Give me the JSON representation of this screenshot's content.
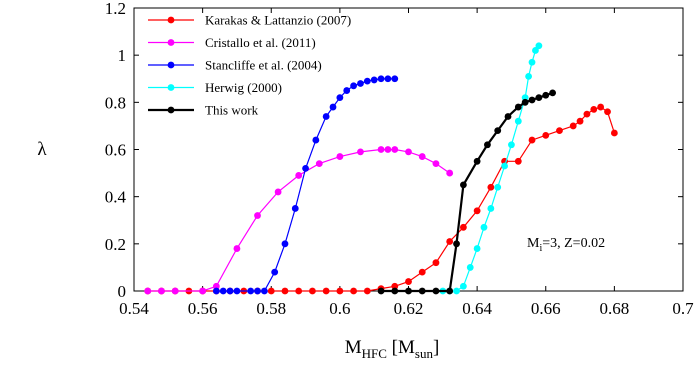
{
  "chart_data": {
    "type": "line",
    "title": "",
    "xlabel": {
      "main": "M",
      "sub": "HFC",
      "rest": " [M",
      "unit_sub": "sun",
      "close": "]"
    },
    "ylabel": "λ",
    "xlim": [
      0.54,
      0.7
    ],
    "ylim": [
      0,
      1.2
    ],
    "x_ticks": [
      {
        "value": 0.54,
        "label": "0.54"
      },
      {
        "value": 0.56,
        "label": "0.56"
      },
      {
        "value": 0.58,
        "label": "0.58"
      },
      {
        "value": 0.6,
        "label": "0.6"
      },
      {
        "value": 0.62,
        "label": "0.62"
      },
      {
        "value": 0.64,
        "label": "0.64"
      },
      {
        "value": 0.66,
        "label": "0.66"
      },
      {
        "value": 0.68,
        "label": "0.68"
      },
      {
        "value": 0.7,
        "label": "0.7"
      }
    ],
    "y_ticks": [
      {
        "value": 0,
        "label": "0"
      },
      {
        "value": 0.2,
        "label": "0.2"
      },
      {
        "value": 0.4,
        "label": "0.4"
      },
      {
        "value": 0.6,
        "label": "0.6"
      },
      {
        "value": 0.8,
        "label": "0.8"
      },
      {
        "value": 1,
        "label": "1"
      },
      {
        "value": 1.2,
        "label": "1.2"
      }
    ],
    "grid": false,
    "legend_position": "top-left",
    "annotation": {
      "main": "M",
      "sub": "i",
      "rest": "=3, Z=0.02"
    },
    "series": [
      {
        "name": "Karakas & Lattanzio (2007)",
        "color": "#ff0000",
        "x": [
          0.544,
          0.548,
          0.552,
          0.556,
          0.56,
          0.564,
          0.568,
          0.572,
          0.576,
          0.58,
          0.584,
          0.588,
          0.592,
          0.596,
          0.6,
          0.604,
          0.608,
          0.612,
          0.616,
          0.62,
          0.624,
          0.628,
          0.632,
          0.636,
          0.64,
          0.644,
          0.648,
          0.652,
          0.656,
          0.66,
          0.664,
          0.668,
          0.67,
          0.672,
          0.674,
          0.676,
          0.678,
          0.68
        ],
        "y": [
          0,
          0,
          0,
          0,
          0,
          0,
          0,
          0,
          0,
          0,
          0,
          0,
          0,
          0,
          0,
          0,
          0,
          0.01,
          0.02,
          0.04,
          0.08,
          0.12,
          0.21,
          0.27,
          0.34,
          0.44,
          0.55,
          0.55,
          0.64,
          0.66,
          0.68,
          0.7,
          0.72,
          0.75,
          0.77,
          0.78,
          0.76,
          0.67
        ]
      },
      {
        "name": "Cristallo et al. (2011)",
        "color": "#ff00ff",
        "x": [
          0.544,
          0.548,
          0.552,
          0.56,
          0.564,
          0.57,
          0.576,
          0.582,
          0.588,
          0.594,
          0.6,
          0.606,
          0.612,
          0.614,
          0.616,
          0.62,
          0.624,
          0.628,
          0.632
        ],
        "y": [
          0,
          0,
          0,
          0,
          0.02,
          0.18,
          0.32,
          0.42,
          0.49,
          0.54,
          0.57,
          0.59,
          0.6,
          0.6,
          0.6,
          0.59,
          0.57,
          0.54,
          0.5
        ]
      },
      {
        "name": "Stancliffe et al. (2004)",
        "color": "#0000ff",
        "x": [
          0.564,
          0.566,
          0.568,
          0.57,
          0.574,
          0.576,
          0.578,
          0.581,
          0.584,
          0.587,
          0.59,
          0.593,
          0.596,
          0.598,
          0.6,
          0.602,
          0.604,
          0.606,
          0.608,
          0.61,
          0.612,
          0.614,
          0.616
        ],
        "y": [
          0,
          0,
          0,
          0,
          0,
          0,
          0,
          0.08,
          0.2,
          0.35,
          0.52,
          0.64,
          0.74,
          0.78,
          0.82,
          0.85,
          0.87,
          0.88,
          0.89,
          0.895,
          0.9,
          0.9,
          0.9
        ]
      },
      {
        "name": "Herwig (2000)",
        "color": "#00ffff",
        "x": [
          0.63,
          0.632,
          0.634,
          0.636,
          0.638,
          0.64,
          0.642,
          0.644,
          0.646,
          0.648,
          0.65,
          0.652,
          0.654,
          0.655,
          0.656,
          0.657,
          0.658
        ],
        "y": [
          0,
          0,
          0,
          0.02,
          0.1,
          0.18,
          0.27,
          0.35,
          0.44,
          0.53,
          0.62,
          0.72,
          0.82,
          0.91,
          0.97,
          1.02,
          1.04
        ]
      },
      {
        "name": "This work",
        "color": "#000000",
        "x": [
          0.612,
          0.616,
          0.62,
          0.624,
          0.628,
          0.632,
          0.634,
          0.636,
          0.64,
          0.643,
          0.646,
          0.649,
          0.652,
          0.654,
          0.656,
          0.658,
          0.66,
          0.662
        ],
        "y": [
          0,
          0,
          0,
          0,
          0,
          0,
          0.2,
          0.45,
          0.55,
          0.62,
          0.68,
          0.74,
          0.78,
          0.8,
          0.81,
          0.82,
          0.83,
          0.84
        ]
      }
    ]
  }
}
